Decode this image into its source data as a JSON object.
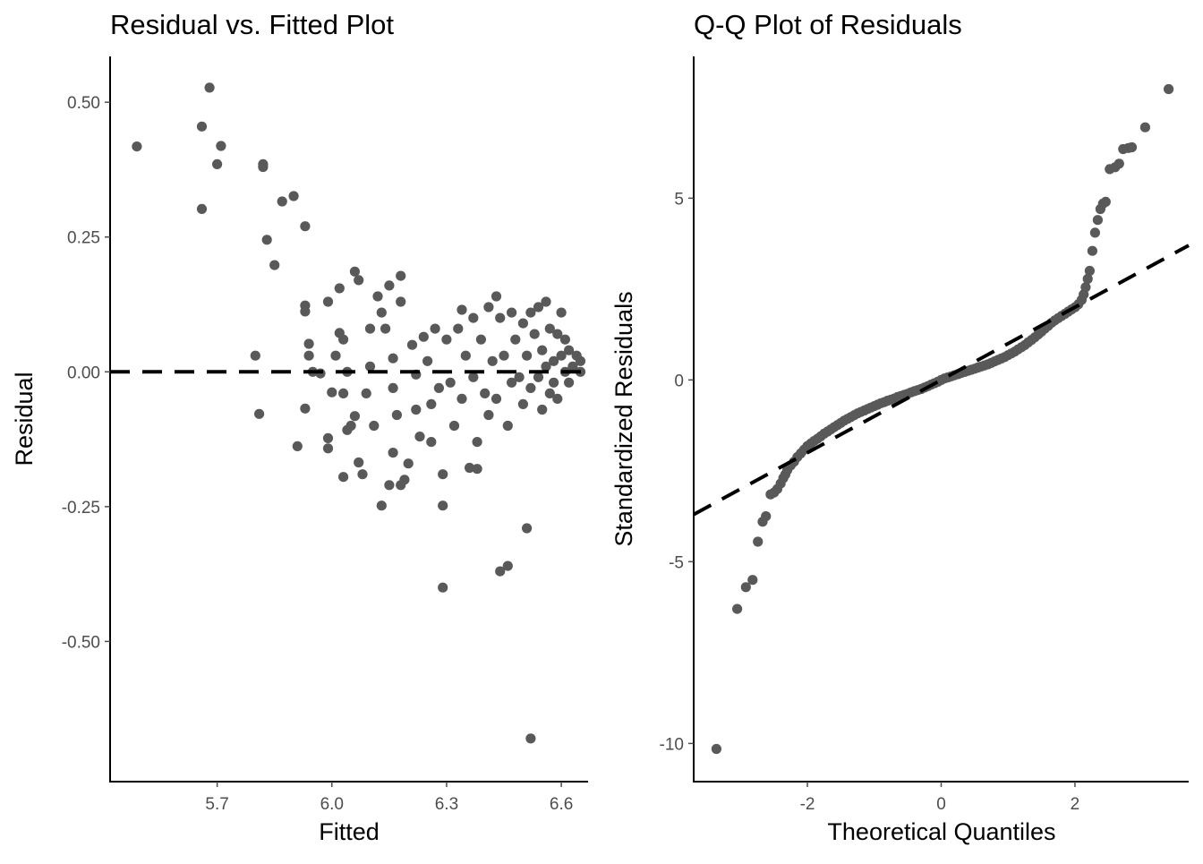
{
  "colors": {
    "point": "#595959",
    "axis": "#000000",
    "tick_text": "#4d4d4d",
    "background": "#ffffff"
  },
  "chart_data": [
    {
      "type": "scatter",
      "title": "Residual vs. Fitted Plot",
      "xlabel": "Fitted",
      "ylabel": "Residual",
      "xlim": [
        5.42,
        6.67
      ],
      "ylim": [
        -0.76,
        0.585
      ],
      "xticks": [
        5.7,
        6.0,
        6.3,
        6.6
      ],
      "xtick_labels": [
        "5.7",
        "6.0",
        "6.3",
        "6.6"
      ],
      "yticks": [
        0.5,
        0.25,
        0.0,
        -0.25,
        -0.5
      ],
      "ytick_labels": [
        "0.50",
        "0.25",
        "0.00",
        "-0.25",
        "-0.50"
      ],
      "grid": false,
      "reference_line": {
        "type": "horizontal",
        "y": 0,
        "style": "dashed"
      },
      "points": [
        [
          5.49,
          0.418
        ],
        [
          5.66,
          0.455
        ],
        [
          5.68,
          0.527
        ],
        [
          5.7,
          0.385
        ],
        [
          5.71,
          0.419
        ],
        [
          5.66,
          0.302
        ],
        [
          5.82,
          0.385
        ],
        [
          5.82,
          0.38
        ],
        [
          5.87,
          0.316
        ],
        [
          5.9,
          0.326
        ],
        [
          5.83,
          0.245
        ],
        [
          5.85,
          0.198
        ],
        [
          5.93,
          0.27
        ],
        [
          5.8,
          0.03
        ],
        [
          5.81,
          -0.078
        ],
        [
          5.93,
          0.123
        ],
        [
          5.93,
          0.112
        ],
        [
          5.94,
          0.052
        ],
        [
          5.94,
          0.03
        ],
        [
          5.93,
          -0.068
        ],
        [
          5.91,
          -0.138
        ],
        [
          5.95,
          0.0
        ],
        [
          5.97,
          -0.003
        ],
        [
          5.99,
          0.13
        ],
        [
          6.0,
          -0.038
        ],
        [
          5.99,
          -0.123
        ],
        [
          5.99,
          -0.142
        ],
        [
          6.02,
          0.155
        ],
        [
          6.02,
          0.072
        ],
        [
          6.03,
          0.06
        ],
        [
          6.04,
          0.0
        ],
        [
          6.01,
          0.03
        ],
        [
          6.03,
          -0.04
        ],
        [
          6.04,
          -0.108
        ],
        [
          6.03,
          -0.195
        ],
        [
          6.05,
          -0.1
        ],
        [
          6.06,
          0.186
        ],
        [
          6.07,
          0.17
        ],
        [
          6.06,
          -0.082
        ],
        [
          6.07,
          -0.168
        ],
        [
          6.08,
          -0.19
        ],
        [
          6.1,
          0.08
        ],
        [
          6.1,
          0.01
        ],
        [
          6.09,
          -0.04
        ],
        [
          6.11,
          -0.1
        ],
        [
          6.12,
          0.14
        ],
        [
          6.13,
          0.11
        ],
        [
          6.14,
          0.08
        ],
        [
          6.15,
          0.16
        ],
        [
          6.16,
          0.025
        ],
        [
          6.16,
          -0.03
        ],
        [
          6.17,
          -0.08
        ],
        [
          6.18,
          0.178
        ],
        [
          6.18,
          0.13
        ],
        [
          6.18,
          -0.21
        ],
        [
          6.13,
          -0.248
        ],
        [
          6.15,
          -0.21
        ],
        [
          6.16,
          -0.15
        ],
        [
          6.19,
          -0.2
        ],
        [
          6.2,
          -0.17
        ],
        [
          6.21,
          0.05
        ],
        [
          6.22,
          -0.005
        ],
        [
          6.22,
          -0.07
        ],
        [
          6.23,
          -0.12
        ],
        [
          6.24,
          0.065
        ],
        [
          6.25,
          0.02
        ],
        [
          6.26,
          -0.06
        ],
        [
          6.26,
          -0.13
        ],
        [
          6.27,
          0.08
        ],
        [
          6.28,
          -0.03
        ],
        [
          6.29,
          -0.19
        ],
        [
          6.29,
          -0.248
        ],
        [
          6.29,
          -0.4
        ],
        [
          6.3,
          0.06
        ],
        [
          6.31,
          -0.02
        ],
        [
          6.32,
          -0.1
        ],
        [
          6.33,
          0.08
        ],
        [
          6.34,
          0.115
        ],
        [
          6.34,
          -0.05
        ],
        [
          6.35,
          0.03
        ],
        [
          6.36,
          -0.178
        ],
        [
          6.37,
          0.1
        ],
        [
          6.37,
          -0.01
        ],
        [
          6.38,
          -0.13
        ],
        [
          6.38,
          -0.18
        ],
        [
          6.39,
          0.06
        ],
        [
          6.4,
          -0.04
        ],
        [
          6.41,
          0.12
        ],
        [
          6.41,
          -0.08
        ],
        [
          6.42,
          0.02
        ],
        [
          6.43,
          0.14
        ],
        [
          6.43,
          -0.05
        ],
        [
          6.44,
          0.1
        ],
        [
          6.44,
          -0.37
        ],
        [
          6.45,
          0.03
        ],
        [
          6.46,
          -0.1
        ],
        [
          6.46,
          -0.36
        ],
        [
          6.47,
          0.11
        ],
        [
          6.47,
          -0.02
        ],
        [
          6.48,
          0.06
        ],
        [
          6.49,
          -0.01
        ],
        [
          6.5,
          0.09
        ],
        [
          6.5,
          -0.06
        ],
        [
          6.51,
          0.03
        ],
        [
          6.51,
          -0.29
        ],
        [
          6.52,
          0.11
        ],
        [
          6.52,
          -0.03
        ],
        [
          6.53,
          0.07
        ],
        [
          6.54,
          -0.01
        ],
        [
          6.54,
          0.12
        ],
        [
          6.55,
          0.04
        ],
        [
          6.55,
          -0.07
        ],
        [
          6.56,
          0.13
        ],
        [
          6.56,
          0.01
        ],
        [
          6.57,
          -0.04
        ],
        [
          6.57,
          0.08
        ],
        [
          6.58,
          0.02
        ],
        [
          6.58,
          -0.02
        ],
        [
          6.59,
          0.07
        ],
        [
          6.59,
          -0.05
        ],
        [
          6.6,
          0.03
        ],
        [
          6.6,
          0.11
        ],
        [
          6.61,
          0.0
        ],
        [
          6.61,
          0.06
        ],
        [
          6.62,
          -0.02
        ],
        [
          6.62,
          0.04
        ],
        [
          6.63,
          0.01
        ],
        [
          6.64,
          0.03
        ],
        [
          6.65,
          0.02
        ],
        [
          6.65,
          0.0
        ],
        [
          6.52,
          -0.68
        ]
      ]
    },
    {
      "type": "scatter",
      "title": "Q-Q Plot of Residuals",
      "xlabel": "Theoretical Quantiles",
      "ylabel": "Standardized Residuals",
      "xlim": [
        -3.7,
        3.7
      ],
      "ylim": [
        -11.05,
        8.9
      ],
      "xticks": [
        -2,
        0,
        2
      ],
      "xtick_labels": [
        "-2",
        "0",
        "2"
      ],
      "yticks": [
        5,
        0,
        -5,
        -10
      ],
      "ytick_labels": [
        "5",
        "0",
        "-5",
        "-10"
      ],
      "grid": false,
      "reference_line": {
        "type": "qq",
        "slope": 1.0,
        "intercept": 0.0,
        "style": "dashed"
      },
      "points": [
        [
          -3.36,
          -10.15
        ],
        [
          -3.05,
          -6.3
        ],
        [
          -2.92,
          -5.7
        ],
        [
          -2.82,
          -5.5
        ],
        [
          -2.74,
          -4.45
        ],
        [
          -2.67,
          -3.9
        ],
        [
          -2.62,
          -3.75
        ],
        [
          -2.55,
          -3.15
        ],
        [
          -2.5,
          -3.1
        ],
        [
          -2.45,
          -3.0
        ],
        [
          -2.4,
          -2.85
        ],
        [
          -2.36,
          -2.7
        ],
        [
          -2.33,
          -2.6
        ],
        [
          -2.3,
          -2.48
        ],
        [
          -2.25,
          -2.35
        ],
        [
          -2.2,
          -2.25
        ],
        [
          -2.15,
          -2.12
        ],
        [
          -2.1,
          -2.02
        ],
        [
          -2.05,
          -1.92
        ],
        [
          -2.0,
          -1.82
        ],
        [
          -1.95,
          -1.75
        ],
        [
          -1.9,
          -1.68
        ],
        [
          -1.85,
          -1.62
        ],
        [
          -1.8,
          -1.55
        ],
        [
          -1.75,
          -1.48
        ],
        [
          -1.7,
          -1.42
        ],
        [
          -1.65,
          -1.36
        ],
        [
          -1.6,
          -1.3
        ],
        [
          -1.55,
          -1.24
        ],
        [
          -1.5,
          -1.18
        ],
        [
          -1.45,
          -1.12
        ],
        [
          -1.4,
          -1.07
        ],
        [
          -1.35,
          -1.02
        ],
        [
          -1.3,
          -0.97
        ],
        [
          -1.25,
          -0.92
        ],
        [
          -1.2,
          -0.88
        ],
        [
          -1.15,
          -0.84
        ],
        [
          -1.1,
          -0.8
        ],
        [
          -1.05,
          -0.76
        ],
        [
          -1.0,
          -0.72
        ],
        [
          -0.95,
          -0.68
        ],
        [
          -0.9,
          -0.64
        ],
        [
          -0.85,
          -0.61
        ],
        [
          -0.8,
          -0.57
        ],
        [
          -0.75,
          -0.54
        ],
        [
          -0.7,
          -0.51
        ],
        [
          -0.65,
          -0.47
        ],
        [
          -0.6,
          -0.44
        ],
        [
          -0.55,
          -0.41
        ],
        [
          -0.5,
          -0.38
        ],
        [
          -0.45,
          -0.34
        ],
        [
          -0.4,
          -0.31
        ],
        [
          -0.35,
          -0.28
        ],
        [
          -0.3,
          -0.25
        ],
        [
          -0.25,
          -0.21
        ],
        [
          -0.2,
          -0.17
        ],
        [
          -0.15,
          -0.13
        ],
        [
          -0.1,
          -0.09
        ],
        [
          -0.05,
          -0.05
        ],
        [
          0.0,
          0.0
        ],
        [
          0.05,
          0.04
        ],
        [
          0.1,
          0.07
        ],
        [
          0.15,
          0.1
        ],
        [
          0.2,
          0.13
        ],
        [
          0.25,
          0.16
        ],
        [
          0.3,
          0.19
        ],
        [
          0.35,
          0.22
        ],
        [
          0.4,
          0.25
        ],
        [
          0.45,
          0.28
        ],
        [
          0.5,
          0.31
        ],
        [
          0.55,
          0.34
        ],
        [
          0.6,
          0.37
        ],
        [
          0.65,
          0.4
        ],
        [
          0.7,
          0.43
        ],
        [
          0.75,
          0.47
        ],
        [
          0.8,
          0.51
        ],
        [
          0.85,
          0.55
        ],
        [
          0.9,
          0.59
        ],
        [
          0.95,
          0.63
        ],
        [
          1.0,
          0.68
        ],
        [
          1.05,
          0.73
        ],
        [
          1.1,
          0.78
        ],
        [
          1.15,
          0.84
        ],
        [
          1.2,
          0.9
        ],
        [
          1.25,
          0.96
        ],
        [
          1.3,
          1.03
        ],
        [
          1.35,
          1.1
        ],
        [
          1.4,
          1.17
        ],
        [
          1.45,
          1.25
        ],
        [
          1.5,
          1.33
        ],
        [
          1.55,
          1.41
        ],
        [
          1.6,
          1.49
        ],
        [
          1.65,
          1.57
        ],
        [
          1.7,
          1.64
        ],
        [
          1.75,
          1.7
        ],
        [
          1.8,
          1.76
        ],
        [
          1.85,
          1.82
        ],
        [
          1.9,
          1.88
        ],
        [
          1.95,
          1.94
        ],
        [
          2.0,
          2.0
        ],
        [
          2.05,
          2.08
        ],
        [
          2.1,
          2.2
        ],
        [
          2.13,
          2.35
        ],
        [
          2.16,
          2.55
        ],
        [
          2.19,
          2.78
        ],
        [
          2.22,
          3.0
        ],
        [
          2.26,
          3.55
        ],
        [
          2.3,
          4.05
        ],
        [
          2.34,
          4.4
        ],
        [
          2.38,
          4.7
        ],
        [
          2.42,
          4.85
        ],
        [
          2.46,
          4.9
        ],
        [
          2.52,
          5.8
        ],
        [
          2.6,
          5.85
        ],
        [
          2.66,
          5.95
        ],
        [
          2.72,
          6.35
        ],
        [
          2.8,
          6.38
        ],
        [
          2.85,
          6.4
        ],
        [
          3.05,
          6.95
        ],
        [
          3.4,
          8.0
        ]
      ]
    }
  ]
}
